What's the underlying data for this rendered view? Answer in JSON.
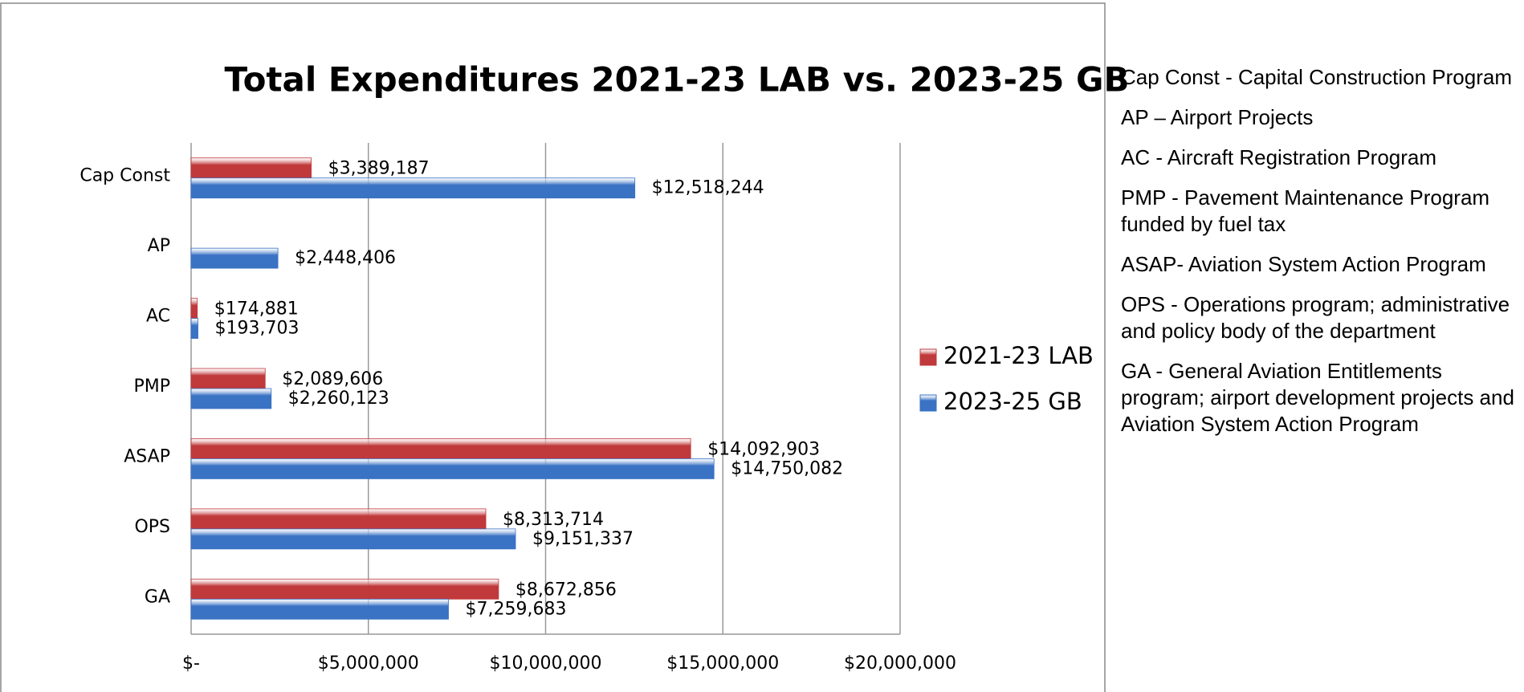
{
  "chart_data": {
    "type": "hbar",
    "title": "Total Expenditures 2021-23 LAB vs. 2023-25 GB",
    "categories": [
      "Cap Const",
      "AP",
      "AC",
      "PMP",
      "ASAP",
      "OPS",
      "GA"
    ],
    "series": [
      {
        "name": "2021-23 LAB",
        "color": "#c0393b",
        "values": [
          3389187,
          null,
          174881,
          2089606,
          14092903,
          8313714,
          8672856
        ],
        "value_labels": [
          "$3,389,187",
          null,
          "$174,881",
          "$2,089,606",
          "$14,092,903",
          "$8,313,714",
          "$8,672,856"
        ]
      },
      {
        "name": "2023-25 GB",
        "color": "#3a72c4",
        "values": [
          12518244,
          2448406,
          193703,
          2260123,
          14750082,
          9151337,
          7259683
        ],
        "value_labels": [
          "$12,518,244",
          "$2,448,406",
          "$193,703",
          "$2,260,123",
          "$14,750,082",
          "$9,151,337",
          "$7,259,683"
        ]
      }
    ],
    "xlim": [
      0,
      20000000
    ],
    "xticks": [
      {
        "value": 0,
        "label": "$-"
      },
      {
        "value": 5000000,
        "label": "$5,000,000"
      },
      {
        "value": 10000000,
        "label": "$10,000,000"
      },
      {
        "value": 15000000,
        "label": "$15,000,000"
      },
      {
        "value": 20000000,
        "label": "$20,000,000"
      }
    ],
    "grid": true,
    "legend": "right"
  },
  "notes": [
    "Cap Const - Capital Construction Program",
    "AP – Airport Projects",
    "AC - Aircraft Registration Program",
    "PMP - Pavement Maintenance Program funded by fuel tax",
    "ASAP- Aviation System Action Program",
    "OPS - Operations program; administrative and policy body of the department",
    "GA - General Aviation Entitlements program; airport development projects and Aviation System Action Program"
  ]
}
